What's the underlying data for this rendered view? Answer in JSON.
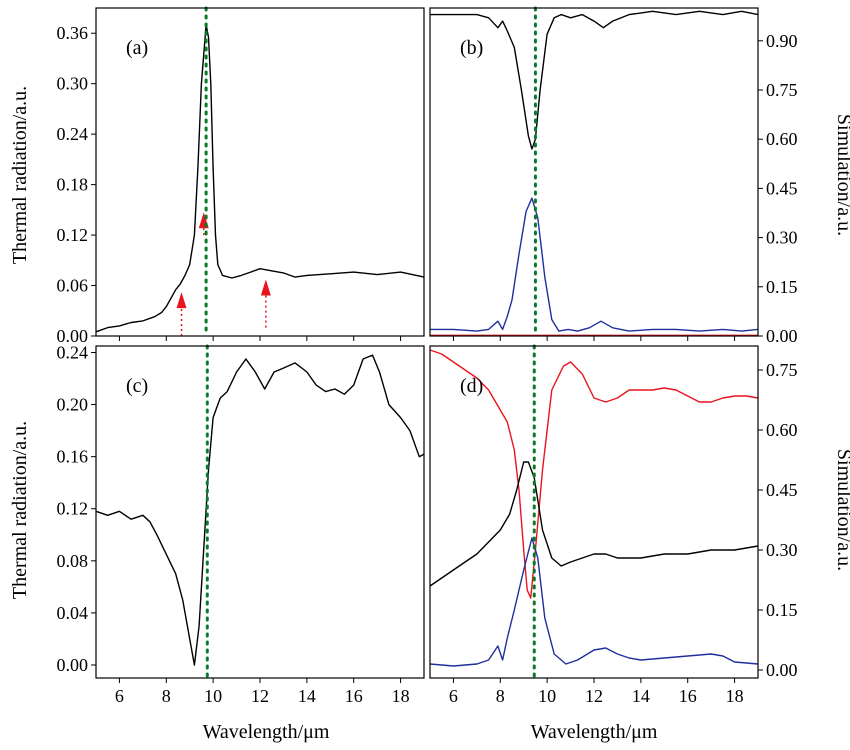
{
  "colors": {
    "black": "#000000",
    "red": "#e8141e",
    "blue": "#1f2f9c",
    "green": "#0a7a2a",
    "frame": "#000000"
  },
  "axis_titles": {
    "x": "Wavelength/μm",
    "left": "Thermal radiation/a.u.",
    "right": "Simulation/a.u."
  },
  "chart_data": [
    {
      "panel": "(a)",
      "type": "line",
      "xlim": [
        5,
        19
      ],
      "ylim": [
        0,
        0.39
      ],
      "x_ticks": [
        6,
        8,
        10,
        12,
        14,
        16,
        18
      ],
      "y_ticks": [
        0.0,
        0.06,
        0.12,
        0.18,
        0.24,
        0.3,
        0.36
      ],
      "y_tick_labels": [
        "0.00",
        "0.06",
        "0.12",
        "0.18",
        "0.24",
        "0.30",
        "0.36"
      ],
      "ylabel": "Thermal radiation/a.u.",
      "x_tick_labels_shown": false,
      "vline_x": 9.7,
      "series": [
        {
          "color": "#000000",
          "points": [
            [
              5.0,
              0.005
            ],
            [
              5.5,
              0.01
            ],
            [
              6.0,
              0.012
            ],
            [
              6.5,
              0.016
            ],
            [
              7.0,
              0.018
            ],
            [
              7.5,
              0.023
            ],
            [
              7.8,
              0.028
            ],
            [
              8.0,
              0.035
            ],
            [
              8.2,
              0.045
            ],
            [
              8.4,
              0.055
            ],
            [
              8.6,
              0.062
            ],
            [
              8.8,
              0.072
            ],
            [
              9.0,
              0.085
            ],
            [
              9.2,
              0.12
            ],
            [
              9.35,
              0.2
            ],
            [
              9.5,
              0.3
            ],
            [
              9.7,
              0.37
            ],
            [
              9.8,
              0.355
            ],
            [
              9.9,
              0.3
            ],
            [
              10.0,
              0.2
            ],
            [
              10.1,
              0.12
            ],
            [
              10.2,
              0.085
            ],
            [
              10.4,
              0.072
            ],
            [
              10.8,
              0.069
            ],
            [
              11.2,
              0.072
            ],
            [
              11.6,
              0.076
            ],
            [
              12.0,
              0.08
            ],
            [
              12.4,
              0.078
            ],
            [
              13.0,
              0.075
            ],
            [
              13.5,
              0.07
            ],
            [
              14.0,
              0.072
            ],
            [
              15.0,
              0.074
            ],
            [
              16.0,
              0.076
            ],
            [
              17.0,
              0.073
            ],
            [
              18.0,
              0.076
            ],
            [
              19.0,
              0.07
            ]
          ]
        }
      ],
      "annotations": [
        {
          "kind": "arrow",
          "x": 8.65,
          "y_from": 0.0,
          "y_to": 0.045,
          "color": "#e8141e"
        },
        {
          "kind": "arrow",
          "x": 9.6,
          "y_from": 0.12,
          "y_to": 0.14,
          "color": "#e8141e"
        },
        {
          "kind": "arrow",
          "x": 12.25,
          "y_from": 0.01,
          "y_to": 0.06,
          "color": "#e8141e"
        }
      ]
    },
    {
      "panel": "(b)",
      "type": "line",
      "xlim": [
        5,
        19
      ],
      "ylim": [
        0,
        1.0
      ],
      "x_ticks": [
        6,
        8,
        10,
        12,
        14,
        16,
        18
      ],
      "y_ticks": [
        0.0,
        0.15,
        0.3,
        0.45,
        0.6,
        0.75,
        0.9
      ],
      "y_tick_labels": [
        "0.00",
        "0.15",
        "0.30",
        "0.45",
        "0.60",
        "0.75",
        "0.90"
      ],
      "ylabel": "Simulation/a.u.",
      "x_tick_labels_shown": false,
      "vline_x": 9.5,
      "series": [
        {
          "color": "#000000",
          "points": [
            [
              5.0,
              0.98
            ],
            [
              6.0,
              0.98
            ],
            [
              7.0,
              0.98
            ],
            [
              7.5,
              0.97
            ],
            [
              7.9,
              0.94
            ],
            [
              8.1,
              0.96
            ],
            [
              8.3,
              0.93
            ],
            [
              8.6,
              0.88
            ],
            [
              8.9,
              0.75
            ],
            [
              9.2,
              0.61
            ],
            [
              9.35,
              0.57
            ],
            [
              9.5,
              0.6
            ],
            [
              9.7,
              0.75
            ],
            [
              10.0,
              0.92
            ],
            [
              10.3,
              0.97
            ],
            [
              10.6,
              0.98
            ],
            [
              11.0,
              0.97
            ],
            [
              11.5,
              0.98
            ],
            [
              12.0,
              0.96
            ],
            [
              12.4,
              0.94
            ],
            [
              12.8,
              0.96
            ],
            [
              13.5,
              0.98
            ],
            [
              14.5,
              0.99
            ],
            [
              15.5,
              0.98
            ],
            [
              16.5,
              0.99
            ],
            [
              17.5,
              0.98
            ],
            [
              18.3,
              0.99
            ],
            [
              19.0,
              0.98
            ]
          ]
        },
        {
          "color": "#1f2f9c",
          "points": [
            [
              5.0,
              0.02
            ],
            [
              6.0,
              0.02
            ],
            [
              7.0,
              0.015
            ],
            [
              7.5,
              0.02
            ],
            [
              7.9,
              0.045
            ],
            [
              8.1,
              0.02
            ],
            [
              8.3,
              0.06
            ],
            [
              8.5,
              0.11
            ],
            [
              8.8,
              0.25
            ],
            [
              9.1,
              0.38
            ],
            [
              9.35,
              0.42
            ],
            [
              9.6,
              0.36
            ],
            [
              9.9,
              0.18
            ],
            [
              10.2,
              0.05
            ],
            [
              10.5,
              0.015
            ],
            [
              10.9,
              0.02
            ],
            [
              11.3,
              0.015
            ],
            [
              11.8,
              0.025
            ],
            [
              12.3,
              0.045
            ],
            [
              12.8,
              0.025
            ],
            [
              13.5,
              0.015
            ],
            [
              14.5,
              0.02
            ],
            [
              15.5,
              0.02
            ],
            [
              16.5,
              0.015
            ],
            [
              17.5,
              0.02
            ],
            [
              18.3,
              0.015
            ],
            [
              19.0,
              0.02
            ]
          ]
        },
        {
          "color": "#e8141e",
          "points": [
            [
              5.0,
              0.002
            ],
            [
              19.0,
              0.002
            ]
          ]
        }
      ]
    },
    {
      "panel": "(c)",
      "type": "line",
      "xlim": [
        5,
        19
      ],
      "ylim": [
        -0.01,
        0.245
      ],
      "x_ticks": [
        6,
        8,
        10,
        12,
        14,
        16,
        18
      ],
      "y_ticks": [
        0.0,
        0.04,
        0.08,
        0.12,
        0.16,
        0.2,
        0.24
      ],
      "y_tick_labels": [
        "0.00",
        "0.04",
        "0.08",
        "0.12",
        "0.16",
        "0.20",
        "0.24"
      ],
      "ylabel": "Thermal radiation/a.u.",
      "x_tick_labels_shown": true,
      "vline_x": 9.75,
      "series": [
        {
          "color": "#000000",
          "points": [
            [
              5.0,
              0.118
            ],
            [
              5.5,
              0.115
            ],
            [
              6.0,
              0.118
            ],
            [
              6.5,
              0.112
            ],
            [
              7.0,
              0.115
            ],
            [
              7.3,
              0.11
            ],
            [
              7.6,
              0.1
            ],
            [
              8.0,
              0.085
            ],
            [
              8.4,
              0.07
            ],
            [
              8.7,
              0.05
            ],
            [
              9.0,
              0.02
            ],
            [
              9.2,
              0.0
            ],
            [
              9.4,
              0.03
            ],
            [
              9.6,
              0.09
            ],
            [
              9.8,
              0.15
            ],
            [
              10.0,
              0.19
            ],
            [
              10.3,
              0.205
            ],
            [
              10.6,
              0.21
            ],
            [
              11.0,
              0.225
            ],
            [
              11.4,
              0.235
            ],
            [
              11.8,
              0.225
            ],
            [
              12.2,
              0.212
            ],
            [
              12.6,
              0.225
            ],
            [
              13.0,
              0.228
            ],
            [
              13.5,
              0.232
            ],
            [
              14.0,
              0.225
            ],
            [
              14.4,
              0.215
            ],
            [
              14.8,
              0.21
            ],
            [
              15.2,
              0.212
            ],
            [
              15.6,
              0.208
            ],
            [
              16.0,
              0.215
            ],
            [
              16.4,
              0.235
            ],
            [
              16.8,
              0.238
            ],
            [
              17.1,
              0.225
            ],
            [
              17.5,
              0.2
            ],
            [
              18.0,
              0.19
            ],
            [
              18.4,
              0.18
            ],
            [
              18.8,
              0.16
            ],
            [
              19.0,
              0.162
            ]
          ]
        }
      ]
    },
    {
      "panel": "(d)",
      "type": "line",
      "xlim": [
        5,
        19
      ],
      "ylim": [
        -0.02,
        0.81
      ],
      "x_ticks": [
        6,
        8,
        10,
        12,
        14,
        16,
        18
      ],
      "y_ticks": [
        0.0,
        0.15,
        0.3,
        0.45,
        0.6,
        0.75
      ],
      "y_tick_labels": [
        "0.00",
        "0.15",
        "0.30",
        "0.45",
        "0.60",
        "0.75"
      ],
      "ylabel": "Simulation/a.u.",
      "x_tick_labels_shown": true,
      "vline_x": 9.45,
      "series": [
        {
          "color": "#e8141e",
          "points": [
            [
              5.0,
              0.8
            ],
            [
              5.5,
              0.79
            ],
            [
              6.0,
              0.77
            ],
            [
              6.5,
              0.75
            ],
            [
              7.0,
              0.73
            ],
            [
              7.5,
              0.7
            ],
            [
              8.0,
              0.65
            ],
            [
              8.3,
              0.62
            ],
            [
              8.6,
              0.55
            ],
            [
              8.8,
              0.45
            ],
            [
              9.0,
              0.3
            ],
            [
              9.15,
              0.2
            ],
            [
              9.3,
              0.18
            ],
            [
              9.5,
              0.3
            ],
            [
              9.8,
              0.5
            ],
            [
              10.2,
              0.7
            ],
            [
              10.7,
              0.76
            ],
            [
              11.0,
              0.77
            ],
            [
              11.5,
              0.74
            ],
            [
              12.0,
              0.68
            ],
            [
              12.5,
              0.67
            ],
            [
              13.0,
              0.68
            ],
            [
              13.5,
              0.7
            ],
            [
              14.0,
              0.7
            ],
            [
              14.5,
              0.7
            ],
            [
              15.0,
              0.705
            ],
            [
              15.5,
              0.7
            ],
            [
              16.0,
              0.685
            ],
            [
              16.5,
              0.67
            ],
            [
              17.0,
              0.67
            ],
            [
              17.5,
              0.68
            ],
            [
              18.0,
              0.685
            ],
            [
              18.5,
              0.685
            ],
            [
              19.0,
              0.68
            ]
          ]
        },
        {
          "color": "#000000",
          "points": [
            [
              5.0,
              0.21
            ],
            [
              5.5,
              0.23
            ],
            [
              6.0,
              0.25
            ],
            [
              6.5,
              0.27
            ],
            [
              7.0,
              0.29
            ],
            [
              7.5,
              0.32
            ],
            [
              8.0,
              0.35
            ],
            [
              8.4,
              0.39
            ],
            [
              8.7,
              0.45
            ],
            [
              9.0,
              0.52
            ],
            [
              9.2,
              0.52
            ],
            [
              9.45,
              0.48
            ],
            [
              9.8,
              0.35
            ],
            [
              10.2,
              0.28
            ],
            [
              10.6,
              0.26
            ],
            [
              11.0,
              0.27
            ],
            [
              11.5,
              0.28
            ],
            [
              12.0,
              0.29
            ],
            [
              12.5,
              0.29
            ],
            [
              13.0,
              0.28
            ],
            [
              13.5,
              0.28
            ],
            [
              14.0,
              0.28
            ],
            [
              15.0,
              0.29
            ],
            [
              16.0,
              0.29
            ],
            [
              17.0,
              0.3
            ],
            [
              18.0,
              0.3
            ],
            [
              19.0,
              0.31
            ]
          ]
        },
        {
          "color": "#1f2f9c",
          "points": [
            [
              5.0,
              0.015
            ],
            [
              6.0,
              0.01
            ],
            [
              7.0,
              0.015
            ],
            [
              7.5,
              0.025
            ],
            [
              7.9,
              0.06
            ],
            [
              8.1,
              0.025
            ],
            [
              8.3,
              0.08
            ],
            [
              8.6,
              0.15
            ],
            [
              9.0,
              0.25
            ],
            [
              9.35,
              0.33
            ],
            [
              9.6,
              0.28
            ],
            [
              9.9,
              0.13
            ],
            [
              10.3,
              0.04
            ],
            [
              10.8,
              0.015
            ],
            [
              11.3,
              0.025
            ],
            [
              12.0,
              0.05
            ],
            [
              12.5,
              0.055
            ],
            [
              13.0,
              0.04
            ],
            [
              13.5,
              0.03
            ],
            [
              14.0,
              0.025
            ],
            [
              15.0,
              0.03
            ],
            [
              16.0,
              0.035
            ],
            [
              17.0,
              0.04
            ],
            [
              17.5,
              0.035
            ],
            [
              18.0,
              0.02
            ],
            [
              19.0,
              0.015
            ]
          ]
        }
      ]
    }
  ]
}
